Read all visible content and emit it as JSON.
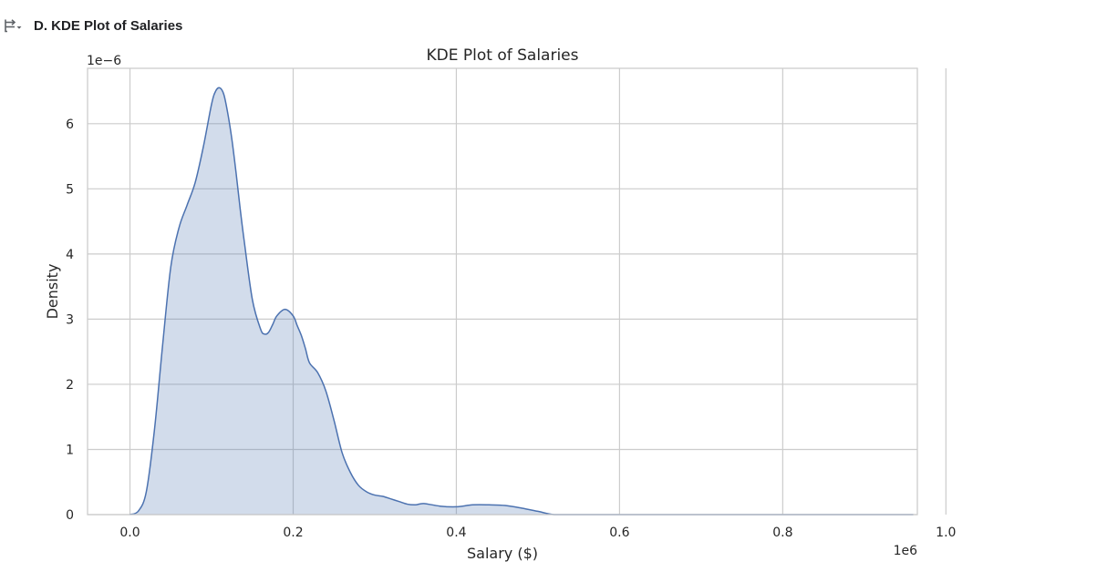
{
  "section": {
    "title": "D. KDE Plot of Salaries",
    "toggle_icon": "collapse-output-icon"
  },
  "colors": {
    "line": "#4c72b0",
    "fill": "#c9d3e7",
    "grid": "#cccccc",
    "frame": "#cccccc",
    "text": "#262626"
  },
  "chart_data": {
    "type": "area",
    "title": "KDE Plot of Salaries",
    "xlabel": "Salary ($)",
    "ylabel": "Density",
    "x_offset_label": "1e6",
    "y_offset_label": "1e−6",
    "xlim": [
      -0.052,
      0.965
    ],
    "ylim": [
      0,
      6.85
    ],
    "xticks": [
      0.0,
      0.2,
      0.4,
      0.6,
      0.8,
      1.0
    ],
    "xtick_labels": [
      "0.0",
      "0.2",
      "0.4",
      "0.6",
      "0.8",
      "1.0"
    ],
    "yticks": [
      0,
      1,
      2,
      3,
      4,
      5,
      6
    ],
    "ytick_labels": [
      "0",
      "1",
      "2",
      "3",
      "4",
      "5",
      "6"
    ],
    "grid": true,
    "series": [
      {
        "x": [
          0.0,
          0.01,
          0.02,
          0.03,
          0.04,
          0.05,
          0.06,
          0.07,
          0.08,
          0.09,
          0.1,
          0.105,
          0.11,
          0.115,
          0.12,
          0.125,
          0.13,
          0.135,
          0.14,
          0.15,
          0.16,
          0.165,
          0.17,
          0.175,
          0.18,
          0.19,
          0.2,
          0.205,
          0.21,
          0.215,
          0.22,
          0.23,
          0.24,
          0.25,
          0.26,
          0.27,
          0.28,
          0.29,
          0.3,
          0.31,
          0.32,
          0.33,
          0.34,
          0.35,
          0.36,
          0.38,
          0.4,
          0.42,
          0.44,
          0.46,
          0.48,
          0.5,
          0.52,
          0.55,
          0.6,
          0.7,
          0.8,
          0.9,
          0.96
        ],
        "y": [
          0.0,
          0.05,
          0.35,
          1.3,
          2.6,
          3.8,
          4.4,
          4.75,
          5.1,
          5.65,
          6.3,
          6.5,
          6.55,
          6.45,
          6.15,
          5.75,
          5.25,
          4.7,
          4.2,
          3.3,
          2.85,
          2.77,
          2.8,
          2.92,
          3.05,
          3.15,
          3.05,
          2.9,
          2.75,
          2.55,
          2.33,
          2.18,
          1.9,
          1.45,
          0.95,
          0.65,
          0.45,
          0.35,
          0.3,
          0.28,
          0.24,
          0.2,
          0.16,
          0.15,
          0.17,
          0.13,
          0.12,
          0.15,
          0.15,
          0.14,
          0.1,
          0.05,
          0.0,
          0.0,
          0.0,
          0.0,
          0.0,
          0.0,
          0.0
        ]
      }
    ]
  }
}
